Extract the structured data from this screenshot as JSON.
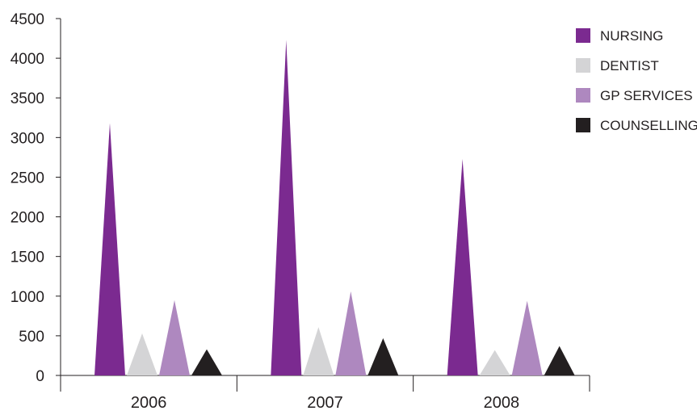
{
  "chart_data": {
    "type": "bar",
    "bar_shape": "triangle",
    "title": "",
    "xlabel": "",
    "ylabel": "",
    "categories": [
      "2006",
      "2007",
      "2008"
    ],
    "ylim": [
      0,
      4500
    ],
    "yticks": [
      "0",
      "500",
      "1000",
      "1500",
      "2000",
      "2500",
      "3000",
      "3500",
      "4000",
      "4500"
    ],
    "grid": false,
    "legend_position": "top-right",
    "series": [
      {
        "name": "NURSING",
        "color": "#7b2a90",
        "values": [
          3180,
          4230,
          2730
        ]
      },
      {
        "name": "DENTIST",
        "color": "#d4d4d6",
        "values": [
          530,
          610,
          320
        ]
      },
      {
        "name": "GP SERVICES",
        "color": "#ae88bf",
        "values": [
          950,
          1060,
          940
        ]
      },
      {
        "name": "COUNSELLING",
        "color": "#231f20",
        "values": [
          330,
          470,
          370
        ]
      }
    ]
  }
}
